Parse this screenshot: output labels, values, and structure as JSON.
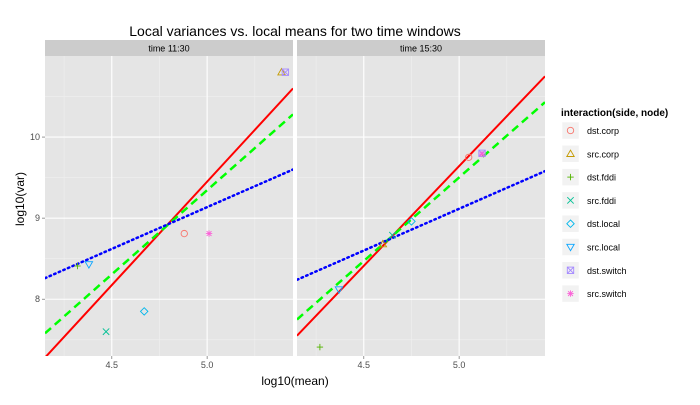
{
  "chart_data": {
    "type": "scatter",
    "title": "Local variances vs. local means for two time windows",
    "xlabel": "log10(mean)",
    "ylabel": "log10(var)",
    "xlim": [
      4.15,
      5.45
    ],
    "ylim": [
      7.3,
      11.0
    ],
    "x_ticks": [
      4.5,
      5.0
    ],
    "y_ticks": [
      8,
      9,
      10
    ],
    "grid": true,
    "legend_title": "interaction(side, node)",
    "legend_position": "right",
    "series": [
      {
        "name": "dst.corp",
        "color": "#F8766D",
        "shape": "circle"
      },
      {
        "name": "src.corp",
        "color": "#C49A00",
        "shape": "triangle"
      },
      {
        "name": "dst.fddi",
        "color": "#53B400",
        "shape": "plus"
      },
      {
        "name": "src.fddi",
        "color": "#00C094",
        "shape": "cross"
      },
      {
        "name": "dst.local",
        "color": "#00B6EB",
        "shape": "diamond"
      },
      {
        "name": "src.local",
        "color": "#06A4FF",
        "shape": "triangle-down"
      },
      {
        "name": "dst.switch",
        "color": "#A58AFF",
        "shape": "square-cross"
      },
      {
        "name": "src.switch",
        "color": "#FB61D7",
        "shape": "asterisk"
      }
    ],
    "panels": [
      {
        "title": "time 11:30",
        "points": [
          {
            "series": "dst.corp",
            "x": 4.88,
            "y": 8.81
          },
          {
            "series": "src.corp",
            "x": 5.39,
            "y": 10.8
          },
          {
            "series": "dst.fddi",
            "x": 4.32,
            "y": 8.41
          },
          {
            "series": "src.fddi",
            "x": 4.47,
            "y": 7.6
          },
          {
            "series": "dst.local",
            "x": 4.67,
            "y": 7.85
          },
          {
            "series": "src.local",
            "x": 4.38,
            "y": 8.43
          },
          {
            "series": "dst.switch",
            "x": 5.41,
            "y": 10.8
          },
          {
            "series": "src.switch",
            "x": 5.01,
            "y": 8.81
          }
        ],
        "lines": [
          {
            "style": "solid",
            "color": "#FF0000",
            "x": [
              4.15,
              5.45
            ],
            "y": [
              7.28,
              10.6
            ]
          },
          {
            "style": "dashed",
            "color": "#00FF00",
            "x": [
              4.15,
              5.45
            ],
            "y": [
              7.58,
              10.28
            ]
          },
          {
            "style": "dotted",
            "color": "#0000FF",
            "x": [
              4.15,
              5.45
            ],
            "y": [
              8.26,
              9.6
            ]
          }
        ]
      },
      {
        "title": "time 15:30",
        "points": [
          {
            "series": "dst.corp",
            "x": 5.05,
            "y": 9.75
          },
          {
            "series": "src.corp",
            "x": 4.6,
            "y": 8.68
          },
          {
            "series": "dst.fddi",
            "x": 4.27,
            "y": 7.41
          },
          {
            "series": "src.fddi",
            "x": 4.65,
            "y": 8.79
          },
          {
            "series": "dst.local",
            "x": 4.75,
            "y": 8.96
          },
          {
            "series": "src.local",
            "x": 4.37,
            "y": 8.12
          },
          {
            "series": "dst.switch",
            "x": 5.12,
            "y": 9.8
          },
          {
            "series": "src.switch",
            "x": 5.12,
            "y": 9.79
          }
        ],
        "lines": [
          {
            "style": "solid",
            "color": "#FF0000",
            "x": [
              4.15,
              5.45
            ],
            "y": [
              7.55,
              10.75
            ]
          },
          {
            "style": "dashed",
            "color": "#00FF00",
            "x": [
              4.15,
              5.45
            ],
            "y": [
              7.75,
              10.43
            ]
          },
          {
            "style": "dotted",
            "color": "#0000FF",
            "x": [
              4.15,
              5.45
            ],
            "y": [
              8.24,
              9.58
            ]
          }
        ]
      }
    ]
  }
}
